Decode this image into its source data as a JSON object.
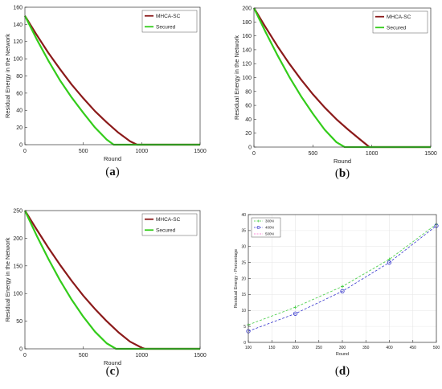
{
  "chart_data": [
    {
      "panel": "(a)",
      "type": "line",
      "title": "",
      "xlabel": "Round",
      "ylabel": "Residual Energy in the Network",
      "xlim": [
        0,
        1500
      ],
      "ylim": [
        0,
        160
      ],
      "xticks": [
        0,
        500,
        1000,
        1500
      ],
      "yticks": [
        0,
        20,
        40,
        60,
        80,
        100,
        120,
        140,
        160
      ],
      "grid": false,
      "legend_position": "top-right",
      "series": [
        {
          "name": "MHCA-SC",
          "color": "#8b1a1a",
          "points": [
            [
              0,
              150
            ],
            [
              100,
              128
            ],
            [
              200,
              107
            ],
            [
              300,
              88
            ],
            [
              400,
              70
            ],
            [
              500,
              54
            ],
            [
              600,
              39
            ],
            [
              700,
              26
            ],
            [
              800,
              14
            ],
            [
              900,
              4
            ],
            [
              960,
              0
            ],
            [
              1500,
              0
            ]
          ]
        },
        {
          "name": "Secured",
          "color": "#33cc1a",
          "points": [
            [
              0,
              150
            ],
            [
              100,
              123
            ],
            [
              200,
              98
            ],
            [
              300,
              75
            ],
            [
              400,
              55
            ],
            [
              500,
              37
            ],
            [
              600,
              20
            ],
            [
              700,
              6
            ],
            [
              760,
              0
            ],
            [
              1500,
              0
            ]
          ]
        }
      ]
    },
    {
      "panel": "(b)",
      "type": "line",
      "title": "",
      "xlabel": "Round",
      "ylabel": "Residual Energy in the Network",
      "xlim": [
        0,
        1500
      ],
      "ylim": [
        0,
        200
      ],
      "xticks": [
        0,
        500,
        1000,
        1500
      ],
      "yticks": [
        0,
        20,
        40,
        60,
        80,
        100,
        120,
        140,
        160,
        180,
        200
      ],
      "grid": false,
      "legend_position": "top-right",
      "series": [
        {
          "name": "MHCA-SC",
          "color": "#8b1a1a",
          "points": [
            [
              0,
              200
            ],
            [
              100,
              172
            ],
            [
              200,
              145
            ],
            [
              300,
              120
            ],
            [
              400,
              97
            ],
            [
              500,
              76
            ],
            [
              600,
              57
            ],
            [
              700,
              40
            ],
            [
              800,
              25
            ],
            [
              900,
              11
            ],
            [
              980,
              0
            ],
            [
              1500,
              0
            ]
          ]
        },
        {
          "name": "Secured",
          "color": "#33cc1a",
          "points": [
            [
              0,
              200
            ],
            [
              100,
              165
            ],
            [
              200,
              132
            ],
            [
              300,
              101
            ],
            [
              400,
              73
            ],
            [
              500,
              48
            ],
            [
              600,
              25
            ],
            [
              700,
              7
            ],
            [
              770,
              0
            ],
            [
              1500,
              0
            ]
          ]
        }
      ]
    },
    {
      "panel": "(c)",
      "type": "line",
      "title": "",
      "xlabel": "Round",
      "ylabel": "Residual Energy in the Network",
      "xlim": [
        0,
        1500
      ],
      "ylim": [
        0,
        250
      ],
      "xticks": [
        0,
        500,
        1000,
        1500
      ],
      "yticks": [
        0,
        50,
        100,
        150,
        200,
        250
      ],
      "grid": false,
      "legend_position": "top-right",
      "series": [
        {
          "name": "MHCA-SC",
          "color": "#8b1a1a",
          "points": [
            [
              0,
              250
            ],
            [
              100,
              216
            ],
            [
              200,
              183
            ],
            [
              300,
              152
            ],
            [
              400,
              123
            ],
            [
              500,
              96
            ],
            [
              600,
              72
            ],
            [
              700,
              50
            ],
            [
              800,
              30
            ],
            [
              900,
              13
            ],
            [
              1000,
              2
            ],
            [
              1030,
              0
            ],
            [
              1500,
              0
            ]
          ]
        },
        {
          "name": "Secured",
          "color": "#33cc1a",
          "points": [
            [
              0,
              250
            ],
            [
              100,
              205
            ],
            [
              200,
              163
            ],
            [
              300,
              124
            ],
            [
              400,
              89
            ],
            [
              500,
              58
            ],
            [
              600,
              31
            ],
            [
              700,
              10
            ],
            [
              780,
              0
            ],
            [
              1500,
              0
            ]
          ]
        }
      ]
    },
    {
      "panel": "(d)",
      "type": "line",
      "title": "",
      "xlabel": "Round",
      "ylabel": "Residual Energy - Percentage",
      "xlim": [
        100,
        500
      ],
      "ylim": [
        0,
        40
      ],
      "xticks": [
        100,
        150,
        200,
        250,
        300,
        350,
        400,
        450,
        500
      ],
      "yticks": [
        0,
        5,
        10,
        15,
        20,
        25,
        30,
        35,
        40
      ],
      "grid": true,
      "legend_position": "top-left",
      "series": [
        {
          "name": "300N",
          "color": "#44cc44",
          "marker": "cross",
          "dash": true,
          "points": [
            [
              100,
              5.5
            ],
            [
              200,
              11
            ],
            [
              300,
              17.5
            ],
            [
              400,
              26
            ],
            [
              500,
              37
            ]
          ]
        },
        {
          "name": "400N",
          "color": "#3333cc",
          "marker": "circle",
          "dash": true,
          "points": [
            [
              100,
              3.5
            ],
            [
              200,
              9
            ],
            [
              300,
              16
            ],
            [
              400,
              25
            ],
            [
              500,
              36.5
            ]
          ]
        },
        {
          "name": "500N",
          "color": "#ff66cc",
          "marker": "line",
          "dash": true,
          "points": []
        }
      ]
    }
  ]
}
